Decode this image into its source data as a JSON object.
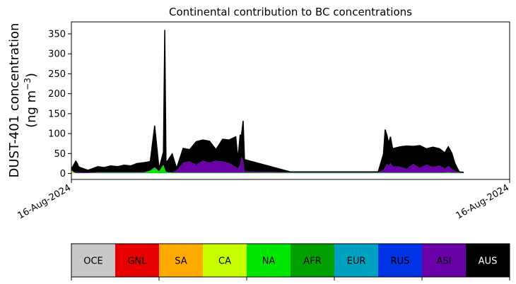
{
  "chart_data": {
    "type": "area",
    "title": "Continental contribution to BC concentrations",
    "ylabel_line1": "DUST-401 concentration",
    "ylabel_line2_prefix": "(ng m",
    "ylabel_line2_sup": "−3",
    "ylabel_line2_suffix": ")",
    "ylim": [
      -15,
      380
    ],
    "yticks": [
      0,
      50,
      100,
      150,
      200,
      250,
      300,
      350
    ],
    "xtick_labels": [
      "16-Aug-2024",
      "16-Aug-2024"
    ],
    "grid": false,
    "total_line_color": "#000000",
    "regions": [
      {
        "name": "OCE",
        "color": "#c8c8c8",
        "text_color": "#000000"
      },
      {
        "name": "GNL",
        "color": "#e60000",
        "text_color": "#000000"
      },
      {
        "name": "SA",
        "color": "#ffaa00",
        "text_color": "#000000"
      },
      {
        "name": "CA",
        "color": "#c8ff00",
        "text_color": "#000000"
      },
      {
        "name": "NA",
        "color": "#00e600",
        "text_color": "#000000"
      },
      {
        "name": "AFR",
        "color": "#00a000",
        "text_color": "#000000"
      },
      {
        "name": "EUR",
        "color": "#00a0c0",
        "text_color": "#000000"
      },
      {
        "name": "RUS",
        "color": "#0032e6",
        "text_color": "#000000"
      },
      {
        "name": "ASI",
        "color": "#6a00a8",
        "text_color": "#000000"
      },
      {
        "name": "AUS",
        "color": "#000000",
        "text_color": "#ffffff"
      }
    ],
    "x": [
      0,
      0.005,
      0.01,
      0.013,
      0.016,
      0.02,
      0.03,
      0.038,
      0.06,
      0.075,
      0.09,
      0.105,
      0.12,
      0.135,
      0.15,
      0.165,
      0.18,
      0.19,
      0.2,
      0.21,
      0.213,
      0.216,
      0.23,
      0.24,
      0.255,
      0.27,
      0.285,
      0.3,
      0.315,
      0.33,
      0.345,
      0.36,
      0.375,
      0.38,
      0.385,
      0.388,
      0.392,
      0.395,
      0.5,
      0.7,
      0.712,
      0.716,
      0.72,
      0.724,
      0.728,
      0.733,
      0.75,
      0.765,
      0.78,
      0.795,
      0.81,
      0.825,
      0.84,
      0.852,
      0.86,
      0.868,
      0.875,
      0.885,
      0.895
    ],
    "series": [
      {
        "name": "OCE",
        "values": [
          1,
          1,
          1,
          1,
          1,
          1,
          1,
          1,
          1,
          1,
          1,
          1,
          1,
          1,
          1,
          1,
          1,
          1,
          1,
          1,
          1,
          1,
          1,
          1,
          1,
          1,
          1,
          1,
          1,
          1,
          1,
          1,
          1,
          1,
          1,
          1,
          1,
          1,
          1,
          1,
          1,
          1,
          1,
          1,
          1,
          1,
          1,
          1,
          1,
          1,
          1,
          1,
          1,
          1,
          1,
          1,
          1,
          1,
          1
        ]
      },
      {
        "name": "CA",
        "values": [
          8,
          2,
          0,
          0,
          0,
          0,
          0,
          0,
          0,
          0,
          0,
          0,
          0,
          0,
          0,
          0,
          0,
          0,
          0,
          0,
          0,
          0,
          0,
          0,
          0,
          0,
          0,
          0,
          0,
          0,
          0,
          0,
          0,
          0,
          0,
          0,
          0,
          0,
          0,
          0,
          0,
          0,
          0,
          0,
          0,
          0,
          0,
          0,
          0,
          0,
          0,
          0,
          0,
          0,
          0,
          0,
          0,
          0,
          0
        ]
      },
      {
        "name": "NA",
        "values": [
          0,
          0,
          0,
          0,
          0,
          0,
          0,
          0,
          1,
          1,
          1,
          1,
          1,
          1,
          1,
          1,
          6,
          14,
          4,
          20,
          10,
          2,
          1,
          1,
          1,
          1,
          1,
          1,
          1,
          1,
          1,
          1,
          1,
          1,
          1,
          1,
          1,
          1,
          1,
          1,
          1,
          1,
          1,
          1,
          1,
          1,
          1,
          1,
          1,
          1,
          1,
          1,
          1,
          1,
          2,
          1,
          1,
          1,
          0
        ]
      },
      {
        "name": "ASI",
        "values": [
          0,
          0,
          2,
          3,
          1,
          2,
          1,
          1,
          1,
          1,
          1,
          1,
          1,
          1,
          1,
          1,
          1,
          1,
          1,
          1,
          1,
          1,
          1,
          5,
          25,
          28,
          20,
          30,
          25,
          30,
          28,
          24,
          14,
          10,
          20,
          40,
          30,
          3,
          1,
          1,
          6,
          14,
          22,
          18,
          24,
          16,
          15,
          9,
          22,
          12,
          20,
          14,
          18,
          10,
          16,
          9,
          4,
          2,
          2
        ]
      },
      {
        "name": "AUS",
        "values": [
          2,
          18,
          28,
          22,
          16,
          12,
          9,
          6,
          14,
          12,
          16,
          14,
          18,
          16,
          22,
          24,
          22,
          104,
          6,
          32,
          348,
          22,
          46,
          6,
          36,
          30,
          58,
          52,
          54,
          28,
          56,
          58,
          76,
          24,
          74,
          54,
          100,
          30,
          1,
          1,
          40,
          94,
          72,
          56,
          66,
          44,
          50,
          58,
          44,
          56,
          40,
          50,
          42,
          40,
          48,
          40,
          20,
          0,
          0
        ]
      }
    ]
  }
}
